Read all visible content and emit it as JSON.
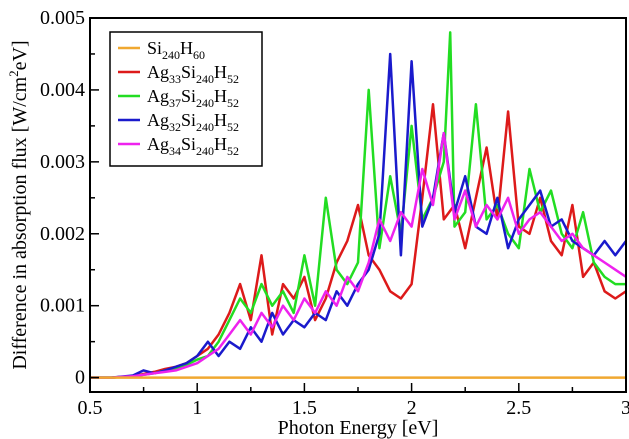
{
  "chart_data": {
    "type": "line",
    "title": "",
    "xlabel": "Photon Energy [eV]",
    "ylabel_parts": [
      "Difference in absorption flux [W/cm",
      "2",
      "eV]"
    ],
    "xlim": [
      0.5,
      3.0
    ],
    "ylim": [
      -0.0002,
      0.005
    ],
    "xticks": [
      0.5,
      1,
      1.5,
      2,
      2.5,
      3
    ],
    "xtick_labels": [
      "0.5",
      "1",
      "1.5",
      "2",
      "2.5",
      "3"
    ],
    "yticks": [
      0,
      0.001,
      0.002,
      0.003,
      0.004,
      0.005
    ],
    "ytick_labels": [
      "0",
      "0.001",
      "0.002",
      "0.003",
      "0.004",
      "0.005"
    ],
    "grid": false,
    "legend_position": "top-left",
    "series": [
      {
        "name": "Si240H60",
        "legend_parts": [
          [
            "Si",
            ""
          ],
          [
            "240",
            "sub"
          ],
          [
            "H",
            ""
          ],
          [
            "60",
            "sub"
          ]
        ],
        "color": "#f0a830",
        "x": [
          0.5,
          3.0
        ],
        "y": [
          0,
          0
        ]
      },
      {
        "name": "Ag33Si240H52",
        "legend_parts": [
          [
            "Ag",
            ""
          ],
          [
            "33",
            "sub"
          ],
          [
            "Si",
            ""
          ],
          [
            "240",
            "sub"
          ],
          [
            "H",
            ""
          ],
          [
            "52",
            "sub"
          ]
        ],
        "color": "#dd1a1a",
        "x": [
          0.5,
          0.6,
          0.7,
          0.75,
          0.8,
          0.85,
          0.9,
          0.95,
          1.0,
          1.05,
          1.1,
          1.15,
          1.2,
          1.25,
          1.3,
          1.35,
          1.4,
          1.45,
          1.5,
          1.55,
          1.6,
          1.65,
          1.7,
          1.75,
          1.8,
          1.85,
          1.9,
          1.95,
          2.0,
          2.05,
          2.1,
          2.15,
          2.2,
          2.25,
          2.3,
          2.35,
          2.4,
          2.45,
          2.5,
          2.55,
          2.6,
          2.65,
          2.7,
          2.75,
          2.8,
          2.85,
          2.9,
          2.95,
          3.0
        ],
        "y": [
          0,
          0,
          2e-05,
          5e-05,
          8e-05,
          0.00012,
          0.00015,
          0.0002,
          0.0003,
          0.0004,
          0.0006,
          0.0009,
          0.0013,
          0.0008,
          0.0017,
          0.0006,
          0.0013,
          0.0011,
          0.0014,
          0.0008,
          0.0011,
          0.0016,
          0.0019,
          0.0024,
          0.0017,
          0.0015,
          0.0012,
          0.0011,
          0.0013,
          0.0025,
          0.0038,
          0.0022,
          0.0024,
          0.0018,
          0.0025,
          0.0032,
          0.0022,
          0.0037,
          0.0021,
          0.002,
          0.0025,
          0.0019,
          0.0017,
          0.0024,
          0.0014,
          0.0016,
          0.0012,
          0.0011,
          0.0012
        ]
      },
      {
        "name": "Ag37Si240H52",
        "legend_parts": [
          [
            "Ag",
            ""
          ],
          [
            "37",
            "sub"
          ],
          [
            "Si",
            ""
          ],
          [
            "240",
            "sub"
          ],
          [
            "H",
            ""
          ],
          [
            "52",
            "sub"
          ]
        ],
        "color": "#22dd22",
        "x": [
          0.5,
          0.6,
          0.7,
          0.75,
          0.8,
          0.85,
          0.9,
          0.95,
          1.0,
          1.05,
          1.1,
          1.15,
          1.2,
          1.25,
          1.3,
          1.35,
          1.4,
          1.45,
          1.5,
          1.55,
          1.6,
          1.65,
          1.7,
          1.75,
          1.8,
          1.85,
          1.9,
          1.95,
          2.0,
          2.05,
          2.1,
          2.15,
          2.18,
          2.2,
          2.25,
          2.3,
          2.35,
          2.4,
          2.45,
          2.5,
          2.55,
          2.6,
          2.65,
          2.7,
          2.75,
          2.8,
          2.85,
          2.9,
          2.95,
          3.0
        ],
        "y": [
          0,
          0,
          2e-05,
          4e-05,
          6e-05,
          0.0001,
          0.00012,
          0.00018,
          0.00025,
          0.0003,
          0.0005,
          0.0008,
          0.0011,
          0.0009,
          0.0013,
          0.001,
          0.0012,
          0.0009,
          0.0017,
          0.001,
          0.0025,
          0.0015,
          0.0013,
          0.0016,
          0.004,
          0.0018,
          0.0028,
          0.002,
          0.0035,
          0.0022,
          0.0025,
          0.003,
          0.0048,
          0.0021,
          0.0023,
          0.0038,
          0.0022,
          0.0024,
          0.002,
          0.0018,
          0.0029,
          0.0023,
          0.0026,
          0.002,
          0.0018,
          0.0023,
          0.0016,
          0.0014,
          0.0013,
          0.0013
        ]
      },
      {
        "name": "Ag32Si240H52",
        "legend_parts": [
          [
            "Ag",
            ""
          ],
          [
            "32",
            "sub"
          ],
          [
            "Si",
            ""
          ],
          [
            "240",
            "sub"
          ],
          [
            "H",
            ""
          ],
          [
            "52",
            "sub"
          ]
        ],
        "color": "#1a1acc",
        "x": [
          0.5,
          0.6,
          0.7,
          0.75,
          0.8,
          0.85,
          0.9,
          0.95,
          1.0,
          1.05,
          1.1,
          1.15,
          1.2,
          1.25,
          1.3,
          1.35,
          1.4,
          1.45,
          1.5,
          1.55,
          1.6,
          1.65,
          1.7,
          1.75,
          1.8,
          1.85,
          1.9,
          1.95,
          2.0,
          2.05,
          2.1,
          2.15,
          2.2,
          2.25,
          2.3,
          2.35,
          2.4,
          2.45,
          2.5,
          2.55,
          2.6,
          2.65,
          2.7,
          2.75,
          2.8,
          2.85,
          2.9,
          2.95,
          3.0
        ],
        "y": [
          0,
          0,
          3e-05,
          0.0001,
          6e-05,
          0.0001,
          0.00015,
          0.0002,
          0.0003,
          0.0005,
          0.0003,
          0.0005,
          0.0004,
          0.0007,
          0.0005,
          0.0009,
          0.0006,
          0.0008,
          0.0007,
          0.0009,
          0.0008,
          0.0012,
          0.001,
          0.0013,
          0.0015,
          0.002,
          0.0045,
          0.0017,
          0.0044,
          0.0021,
          0.0025,
          0.0034,
          0.0023,
          0.0028,
          0.0021,
          0.002,
          0.0025,
          0.0018,
          0.0022,
          0.0024,
          0.0026,
          0.0021,
          0.0022,
          0.0019,
          0.0018,
          0.0017,
          0.0019,
          0.0017,
          0.0019
        ]
      },
      {
        "name": "Ag34Si240H52",
        "legend_parts": [
          [
            "Ag",
            ""
          ],
          [
            "34",
            "sub"
          ],
          [
            "Si",
            ""
          ],
          [
            "240",
            "sub"
          ],
          [
            "H",
            ""
          ],
          [
            "52",
            "sub"
          ]
        ],
        "color": "#ee22ee",
        "x": [
          0.5,
          0.6,
          0.7,
          0.75,
          0.8,
          0.85,
          0.9,
          0.95,
          1.0,
          1.05,
          1.1,
          1.15,
          1.2,
          1.25,
          1.3,
          1.35,
          1.4,
          1.45,
          1.5,
          1.55,
          1.6,
          1.65,
          1.7,
          1.75,
          1.8,
          1.85,
          1.9,
          1.95,
          2.0,
          2.05,
          2.1,
          2.15,
          2.2,
          2.25,
          2.3,
          2.35,
          2.4,
          2.45,
          2.5,
          2.55,
          2.6,
          2.65,
          2.7,
          2.75,
          2.8,
          2.85,
          2.9,
          2.95,
          3.0
        ],
        "y": [
          0,
          0,
          2e-05,
          4e-05,
          6e-05,
          8e-05,
          0.0001,
          0.00015,
          0.0002,
          0.0003,
          0.0004,
          0.0006,
          0.0008,
          0.0006,
          0.0009,
          0.0007,
          0.001,
          0.0008,
          0.0011,
          0.0009,
          0.0012,
          0.001,
          0.0014,
          0.0012,
          0.0016,
          0.0022,
          0.0019,
          0.0023,
          0.0021,
          0.0029,
          0.0024,
          0.0034,
          0.0022,
          0.0026,
          0.0021,
          0.0024,
          0.0022,
          0.0025,
          0.002,
          0.0022,
          0.0023,
          0.0021,
          0.0019,
          0.002,
          0.0018,
          0.0017,
          0.0016,
          0.0015,
          0.0014
        ]
      }
    ]
  }
}
